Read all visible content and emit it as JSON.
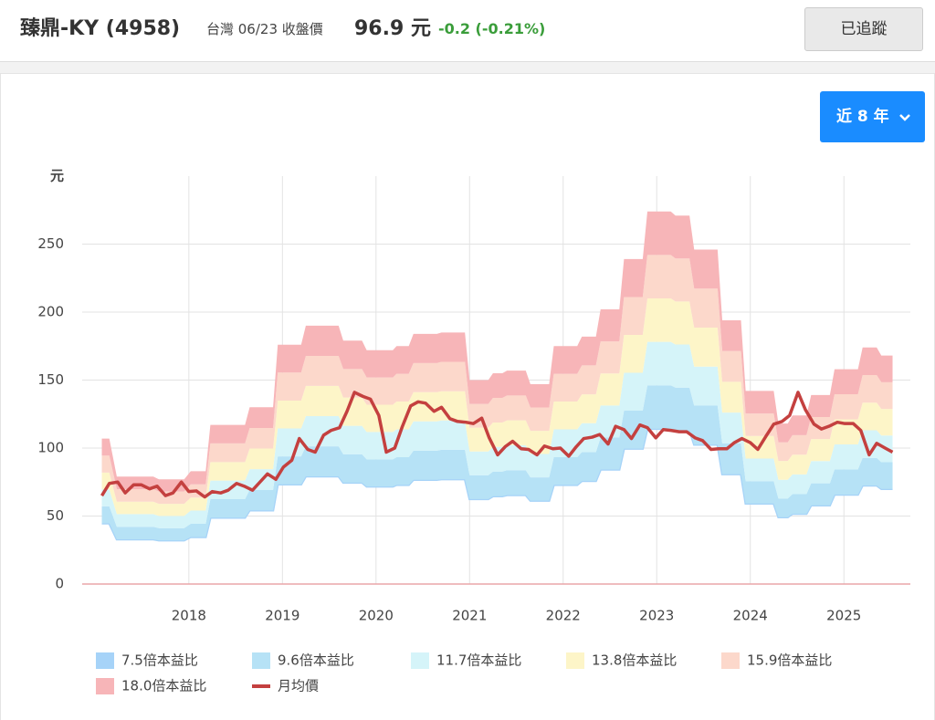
{
  "header": {
    "name": "臻鼎-KY (4958)",
    "market_date": "台灣 06/23 收盤價",
    "price": "96.9 元",
    "change": "-0.2 (-0.21%)",
    "button": "已追蹤"
  },
  "range_selector": "近 8 年",
  "chart_data": {
    "type": "area",
    "y_label": "元",
    "xlim": [
      2016.86,
      2025.71
    ],
    "xticks": [
      2018,
      2019,
      2020,
      2021,
      2022,
      2023,
      2024,
      2025
    ],
    "ylim": [
      0,
      300
    ],
    "yticks": [
      0,
      50,
      100,
      150,
      200,
      250
    ],
    "grid": true,
    "x": [
      2017.07,
      2017.15,
      2017.23,
      2017.62,
      2017.68,
      2017.95,
      2018.02,
      2018.18,
      2018.23,
      2018.6,
      2018.65,
      2018.9,
      2018.95,
      2019.2,
      2019.25,
      2019.6,
      2019.65,
      2019.85,
      2019.9,
      2020.18,
      2020.22,
      2020.35,
      2020.4,
      2020.65,
      2020.7,
      2020.95,
      2021,
      2021.2,
      2021.25,
      2021.35,
      2021.4,
      2021.6,
      2021.65,
      2021.85,
      2021.9,
      2022.15,
      2022.2,
      2022.35,
      2022.4,
      2022.6,
      2022.65,
      2022.85,
      2022.9,
      2023.15,
      2023.2,
      2023.35,
      2023.4,
      2023.65,
      2023.7,
      2023.9,
      2023.95,
      2024.25,
      2024.3,
      2024.4,
      2024.45,
      2024.6,
      2024.65,
      2024.85,
      2024.9,
      2025.15,
      2025.2,
      2025.35,
      2025.4,
      2025.52
    ],
    "series": [
      {
        "name": "7.5倍本益比",
        "color": "#a6d3f8",
        "values": [
          44.6,
          44.6,
          32.9,
          32.9,
          32.1,
          32.1,
          34.6,
          34.6,
          48.8,
          48.8,
          54.2,
          54.2,
          73.3,
          73.3,
          79.2,
          79.2,
          74.6,
          74.6,
          71.7,
          71.7,
          72.9,
          72.9,
          76.7,
          76.7,
          77.1,
          77.1,
          62.5,
          62.5,
          64.6,
          64.6,
          65.4,
          65.4,
          61.3,
          61.3,
          72.9,
          72.9,
          75.8,
          75.8,
          84.2,
          84.2,
          99.6,
          99.6,
          114.2,
          114.2,
          112.9,
          112.9,
          102.5,
          102.5,
          80.8,
          80.8,
          59.2,
          59.2,
          49.2,
          49.2,
          51.7,
          51.7,
          57.9,
          57.9,
          65.8,
          65.8,
          72.5,
          72.5,
          70,
          70
        ]
      },
      {
        "name": "9.6倍本益比",
        "color": "#b6e2f6",
        "values": [
          57.1,
          57.1,
          42.1,
          42.1,
          41.1,
          41.1,
          44.3,
          44.3,
          62.4,
          62.4,
          69.3,
          69.3,
          93.9,
          93.9,
          101.3,
          101.3,
          95.5,
          95.5,
          91.7,
          91.7,
          93.3,
          93.3,
          98.1,
          98.1,
          98.7,
          98.7,
          80,
          80,
          82.7,
          82.7,
          83.7,
          83.7,
          78.4,
          78.4,
          93.3,
          93.3,
          97.1,
          97.1,
          107.7,
          107.7,
          127.5,
          127.5,
          146.1,
          146.1,
          144.5,
          144.5,
          131.2,
          131.2,
          103.5,
          103.5,
          75.7,
          75.7,
          62.9,
          62.9,
          66.1,
          66.1,
          74.1,
          74.1,
          84.3,
          84.3,
          92.8,
          92.8,
          89.6,
          89.6
        ]
      },
      {
        "name": "11.7倍本益比",
        "color": "#d5f4f9",
        "values": [
          69.6,
          69.6,
          51.4,
          51.4,
          50.1,
          50.1,
          54,
          54,
          76.1,
          76.1,
          84.5,
          84.5,
          114.4,
          114.4,
          123.5,
          123.5,
          116.4,
          116.4,
          111.8,
          111.8,
          113.8,
          113.8,
          119.6,
          119.6,
          120.3,
          120.3,
          97.5,
          97.5,
          100.8,
          100.8,
          102.1,
          102.1,
          95.6,
          95.6,
          113.8,
          113.8,
          118.3,
          118.3,
          131.3,
          131.3,
          155.4,
          155.4,
          178.1,
          178.1,
          176.2,
          176.2,
          159.9,
          159.9,
          126.1,
          126.1,
          92.3,
          92.3,
          76.7,
          76.7,
          80.6,
          80.6,
          90.4,
          90.4,
          102.7,
          102.7,
          113.1,
          113.1,
          109.2,
          109.2
        ]
      },
      {
        "name": "13.8倍本益比",
        "color": "#fdf5c8",
        "values": [
          82,
          82,
          60.6,
          60.6,
          59,
          59,
          63.6,
          63.6,
          89.7,
          89.7,
          99.7,
          99.7,
          134.9,
          134.9,
          145.7,
          145.7,
          137.2,
          137.2,
          131.9,
          131.9,
          134.2,
          134.2,
          141.1,
          141.1,
          141.8,
          141.8,
          115,
          115,
          118.8,
          118.8,
          120.4,
          120.4,
          112.7,
          112.7,
          134.2,
          134.2,
          139.5,
          139.5,
          154.9,
          154.9,
          183.2,
          183.2,
          210.1,
          210.1,
          207.8,
          207.8,
          188.6,
          188.6,
          148.7,
          148.7,
          108.9,
          108.9,
          90.5,
          90.5,
          95.1,
          95.1,
          106.6,
          106.6,
          121.1,
          121.1,
          133.4,
          133.4,
          128.8,
          128.8
        ]
      },
      {
        "name": "15.9倍本益比",
        "color": "#fcd8cb",
        "values": [
          94.5,
          94.5,
          69.8,
          69.8,
          68,
          68,
          73.3,
          73.3,
          103.4,
          103.4,
          114.8,
          114.8,
          155.5,
          155.5,
          167.8,
          167.8,
          158.1,
          158.1,
          151.9,
          151.9,
          154.6,
          154.6,
          162.5,
          162.5,
          163.4,
          163.4,
          132.5,
          132.5,
          136.9,
          136.9,
          138.7,
          138.7,
          129.9,
          129.9,
          154.6,
          154.6,
          160.8,
          160.8,
          178.4,
          178.4,
          211.1,
          211.1,
          242,
          242,
          239.4,
          239.4,
          217.3,
          217.3,
          171.4,
          171.4,
          125.4,
          125.4,
          104.2,
          104.2,
          109.5,
          109.5,
          122.8,
          122.8,
          139.6,
          139.6,
          153.7,
          153.7,
          148.4,
          148.4
        ]
      },
      {
        "name": "18.0倍本益比",
        "color": "#f7b5b8",
        "values": [
          107,
          107,
          79,
          79,
          77,
          77,
          83,
          83,
          117,
          117,
          130,
          130,
          176,
          176,
          190,
          190,
          179,
          179,
          172,
          172,
          175,
          175,
          184,
          184,
          185,
          185,
          150,
          150,
          155,
          155,
          157,
          157,
          147,
          147,
          175,
          175,
          182,
          182,
          202,
          202,
          239,
          239,
          274,
          274,
          271,
          271,
          246,
          246,
          194,
          194,
          142,
          142,
          118,
          118,
          124,
          124,
          139,
          139,
          158,
          158,
          174,
          174,
          168,
          168
        ]
      },
      {
        "name": "月均價",
        "color": "#c4403f",
        "type": "line",
        "x": [
          2017.07,
          2017.15,
          2017.24,
          2017.32,
          2017.41,
          2017.49,
          2017.58,
          2017.66,
          2017.75,
          2017.83,
          2017.92,
          2018.0,
          2018.08,
          2018.17,
          2018.25,
          2018.34,
          2018.42,
          2018.51,
          2018.59,
          2018.68,
          2018.76,
          2018.84,
          2018.93,
          2019.01,
          2019.1,
          2019.18,
          2019.27,
          2019.35,
          2019.44,
          2019.52,
          2019.61,
          2019.69,
          2019.77,
          2019.86,
          2019.94,
          2020.03,
          2020.11,
          2020.2,
          2020.28,
          2020.37,
          2020.45,
          2020.53,
          2020.62,
          2020.7,
          2020.79,
          2020.87,
          2020.96,
          2021.04,
          2021.13,
          2021.21,
          2021.3,
          2021.38,
          2021.46,
          2021.55,
          2021.63,
          2021.72,
          2021.8,
          2021.89,
          2021.97,
          2022.06,
          2022.14,
          2022.22,
          2022.31,
          2022.39,
          2022.48,
          2022.56,
          2022.65,
          2022.73,
          2022.82,
          2022.9,
          2022.99,
          2023.07,
          2023.15,
          2023.24,
          2023.32,
          2023.41,
          2023.49,
          2023.58,
          2023.66,
          2023.75,
          2023.83,
          2023.91,
          2024.0,
          2024.08,
          2024.17,
          2024.25,
          2024.34,
          2024.42,
          2024.51,
          2024.59,
          2024.68,
          2024.76,
          2024.84,
          2024.93,
          2025.01,
          2025.1,
          2025.18,
          2025.27,
          2025.35,
          2025.44,
          2025.52
        ],
        "values": [
          65,
          74,
          75,
          67,
          73,
          73,
          70,
          72,
          65,
          67,
          75,
          68,
          68.5,
          64,
          68,
          67,
          69,
          74,
          72,
          69,
          75,
          81,
          77,
          86,
          91,
          107,
          99,
          97,
          109.5,
          113,
          115,
          127,
          141,
          138,
          136,
          124,
          97,
          100,
          115.6,
          131,
          134,
          133,
          127,
          130,
          121.6,
          119.6,
          119,
          118,
          122,
          107.5,
          95,
          101,
          105,
          99.5,
          99,
          95,
          101.5,
          99.5,
          100,
          94,
          101,
          107,
          108,
          110,
          103,
          116,
          113.6,
          107,
          117,
          115,
          107.5,
          113.6,
          113,
          112,
          112,
          107.5,
          105.5,
          99,
          99.5,
          99.5,
          104,
          107,
          104,
          99,
          109,
          117.6,
          119.6,
          124,
          141,
          128,
          117.6,
          114,
          116,
          119,
          118,
          118,
          113,
          95,
          103.5,
          100,
          97
        ]
      }
    ]
  }
}
